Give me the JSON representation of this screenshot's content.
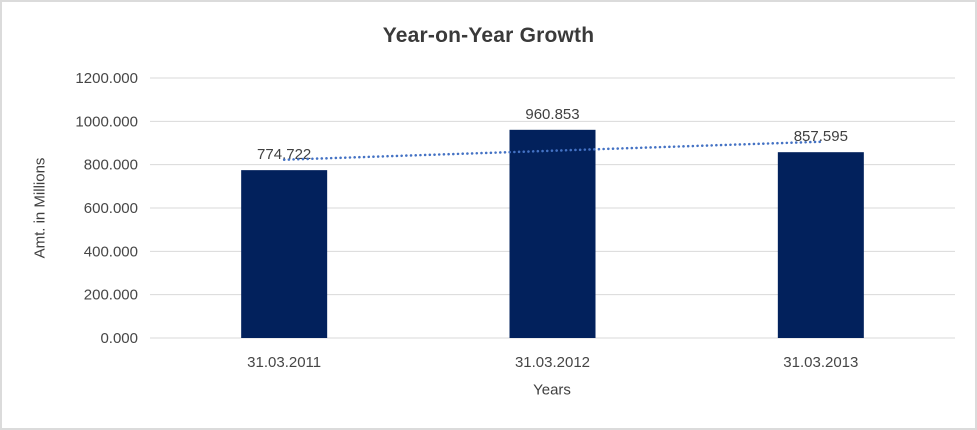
{
  "window": {
    "background": "#FFFFFF",
    "border_color": "#DBDBDB"
  },
  "chart_data": {
    "type": "bar",
    "title": "Year-on-Year Growth",
    "categories": [
      "31.03.2011",
      "31.03.2012",
      "31.03.2013"
    ],
    "values": [
      774.722,
      960.853,
      857.595
    ],
    "bar_labels": [
      "774.722",
      "960.853",
      "857.595"
    ],
    "xlabel": "Years",
    "ylabel": "Amt. in Millions",
    "ylim": [
      0,
      1200
    ],
    "ytick_interval": 200,
    "ytick_labels": [
      "0.000",
      "200.000",
      "400.000",
      "600.000",
      "800.000",
      "1000.000",
      "1200.000"
    ],
    "grid": "horizontal",
    "legend_position": "none",
    "trendline": {
      "type": "linear",
      "style": "dotted",
      "color": "#4472C4"
    },
    "colors": {
      "bar": "#02215C",
      "gridline": "#D9D9D9",
      "tick_text": "#464646",
      "data_label_text": "#404040",
      "title_text": "#3A3A3A",
      "axis_title_text": "#3F3F3F"
    }
  }
}
